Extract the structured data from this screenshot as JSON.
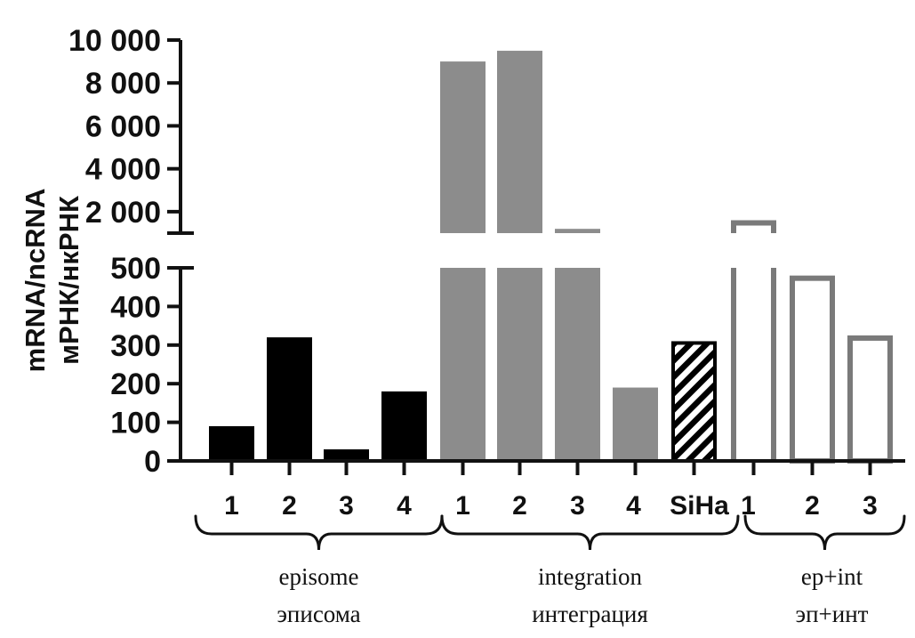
{
  "chart_data": {
    "type": "bar",
    "ylabel_lines": [
      "mRNA/ncRNA",
      "мРНК/нкРНК"
    ],
    "y_axis_segments": {
      "lower": {
        "range": [
          0,
          500
        ],
        "ticks": [
          0,
          100,
          200,
          300,
          400,
          500
        ],
        "tick_labels": [
          "0",
          "100",
          "200",
          "300",
          "400",
          "500"
        ]
      },
      "upper": {
        "range": [
          1000,
          10000
        ],
        "ticks": [
          2000,
          4000,
          6000,
          8000,
          10000
        ],
        "tick_labels": [
          "2 000",
          "4 000",
          "6 000",
          "8 000",
          "10 000"
        ]
      }
    },
    "categories": [
      "1",
      "2",
      "3",
      "4",
      "1",
      "2",
      "3",
      "4",
      "SiHa",
      "1",
      "2",
      "3"
    ],
    "values": [
      90,
      320,
      30,
      180,
      9000,
      9500,
      1200,
      190,
      310,
      1600,
      480,
      325
    ],
    "bar_styles": [
      "solid-black",
      "solid-black",
      "solid-black",
      "solid-black",
      "solid-gray",
      "solid-gray",
      "solid-gray",
      "solid-gray",
      "hatched",
      "outline",
      "outline",
      "outline"
    ],
    "groups": [
      {
        "label_en": "episome",
        "label_ru": "эписома",
        "members": [
          0,
          1,
          2,
          3
        ]
      },
      {
        "label_en": "integration",
        "label_ru": "интеграция",
        "members": [
          4,
          5,
          6,
          7,
          8
        ]
      },
      {
        "label_en": "ep+int",
        "label_ru": "эп+инт",
        "members": [
          9,
          10,
          11
        ]
      }
    ],
    "colors": {
      "black": "#000000",
      "gray": "#8c8c8c",
      "outline": "#7a7a7a",
      "axis": "#111111"
    }
  }
}
